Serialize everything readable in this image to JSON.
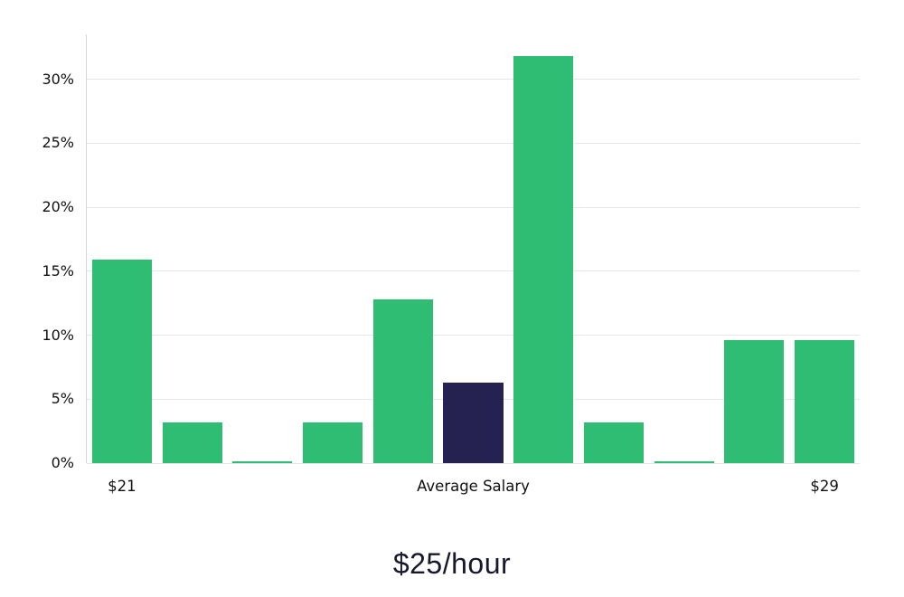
{
  "chart_data": {
    "type": "bar",
    "title": "$25/hour",
    "values": [
      15.9,
      3.2,
      0.15,
      3.2,
      12.8,
      6.3,
      31.8,
      3.2,
      0.15,
      9.6,
      9.6
    ],
    "highlight_index": 5,
    "bar_color": "#2ebd73",
    "highlight_color": "#252150",
    "ylim": [
      0,
      33.5
    ],
    "yticks": [
      0,
      5,
      10,
      15,
      20,
      25,
      30
    ],
    "ytick_suffix": "%",
    "x_tick_labels": [
      {
        "index": 0,
        "label": "$21"
      },
      {
        "index": 5,
        "label": "Average Salary"
      },
      {
        "index": 10,
        "label": "$29"
      }
    ],
    "grid": "horizontal",
    "legend": "none",
    "axis_color": "#d6d6d6",
    "grid_color": "#e7e7e7",
    "text_color": "#111111"
  }
}
